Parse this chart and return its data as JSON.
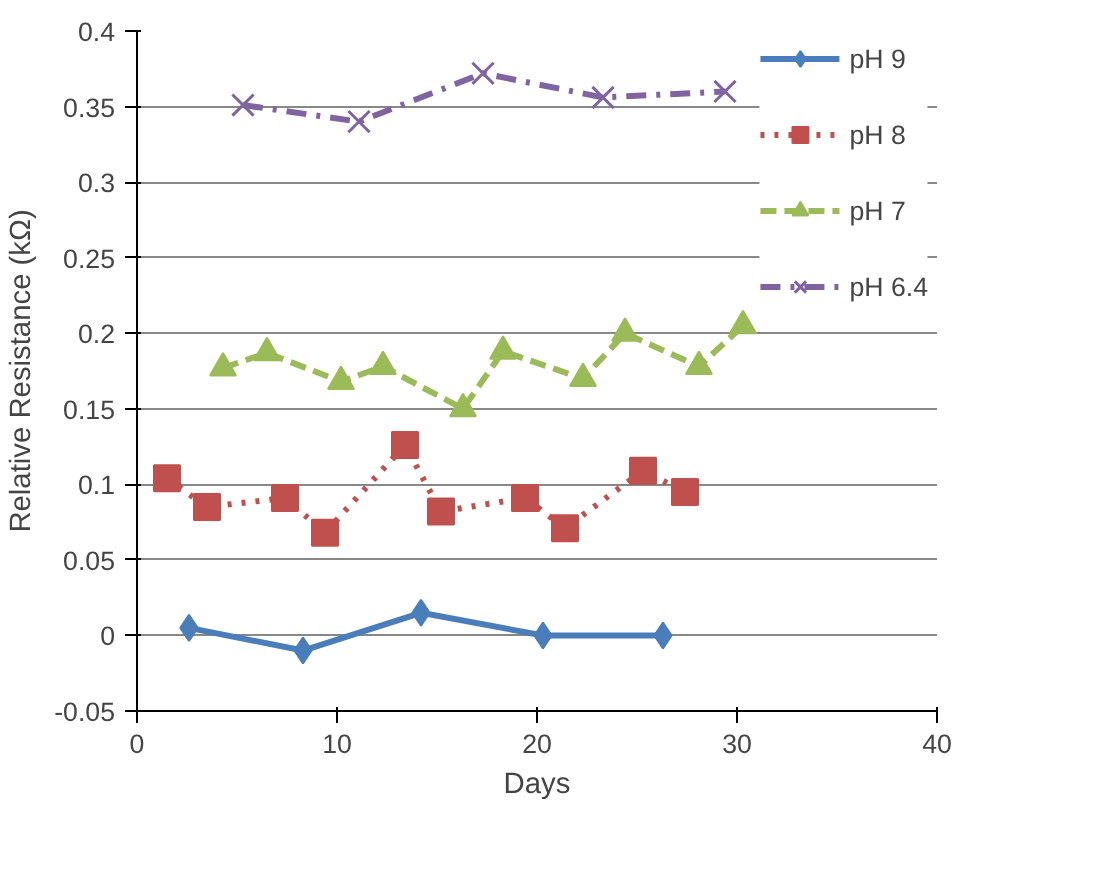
{
  "chart_data": {
    "type": "line",
    "xlabel": "Days",
    "ylabel": "Relative Resistance (kΩ)",
    "xlim": [
      0,
      40
    ],
    "xticks": [
      0,
      10,
      20,
      30,
      40
    ],
    "ylim": [
      -0.05,
      0.4
    ],
    "yticks": [
      -0.05,
      0,
      0.05,
      0.1,
      0.15,
      0.2,
      0.25,
      0.3,
      0.35,
      0.4
    ],
    "grid": "y",
    "legend": "right",
    "series": [
      {
        "name": "pH 9",
        "color": "#4a7ebb",
        "marker": "diamond",
        "line_style": "solid",
        "x": [
          2.6,
          8.3,
          14.2,
          20.3,
          26.3
        ],
        "values": [
          0.005,
          -0.01,
          0.015,
          0,
          0
        ]
      },
      {
        "name": "pH 8",
        "color": "#c0504d",
        "marker": "square",
        "line_style": "dotted",
        "x": [
          1.5,
          3.5,
          7.4,
          9.4,
          13.4,
          15.2,
          19.4,
          21.4,
          25.3,
          27.4
        ],
        "values": [
          0.104,
          0.085,
          0.091,
          0.068,
          0.126,
          0.082,
          0.091,
          0.071,
          0.109,
          0.095
        ]
      },
      {
        "name": "pH 7",
        "color": "#9bbb59",
        "marker": "triangle",
        "line_style": "dashed",
        "x": [
          4.3,
          6.5,
          10.2,
          12.3,
          16.3,
          18.3,
          22.3,
          24.4,
          28.1,
          30.3
        ],
        "values": [
          0.177,
          0.187,
          0.168,
          0.178,
          0.15,
          0.188,
          0.17,
          0.2,
          0.178,
          0.205
        ]
      },
      {
        "name": "pH 6.4",
        "color": "#8064a2",
        "marker": "cross",
        "line_style": "dashdot",
        "x": [
          5.3,
          11.1,
          17.3,
          23.3,
          29.4
        ],
        "values": [
          0.351,
          0.34,
          0.372,
          0.356,
          0.36
        ]
      }
    ]
  }
}
